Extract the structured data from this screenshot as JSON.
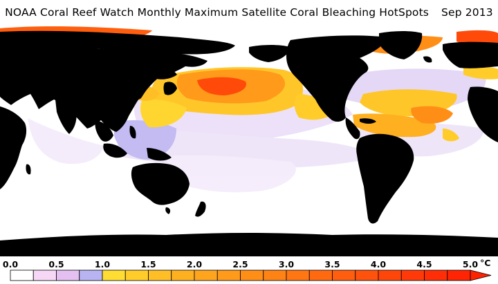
{
  "title": {
    "text": "NOAA Coral Reef Watch Monthly Maximum Satellite Coral Bleaching HotSpots",
    "date": "Sep 2013"
  },
  "legend": {
    "ticks": [
      "0.0",
      "0.5",
      "1.0",
      "1.5",
      "2.0",
      "2.5",
      "3.0",
      "3.5",
      "4.0",
      "4.5",
      "5.0"
    ],
    "unit": "°C",
    "bins": [
      {
        "from": 0.0,
        "to": 0.25,
        "color": "#ffffff"
      },
      {
        "from": 0.25,
        "to": 0.5,
        "color": "#f6d8f6"
      },
      {
        "from": 0.5,
        "to": 0.75,
        "color": "#e4c0f2"
      },
      {
        "from": 0.75,
        "to": 1.0,
        "color": "#b8b4f2"
      },
      {
        "from": 1.0,
        "to": 1.25,
        "color": "#ffdd33"
      },
      {
        "from": 1.25,
        "to": 1.5,
        "color": "#ffcc2a"
      },
      {
        "from": 1.5,
        "to": 1.75,
        "color": "#ffbe25"
      },
      {
        "from": 1.75,
        "to": 2.0,
        "color": "#ffb020"
      },
      {
        "from": 2.0,
        "to": 2.25,
        "color": "#ffa51d"
      },
      {
        "from": 2.25,
        "to": 2.5,
        "color": "#ff9a1a"
      },
      {
        "from": 2.5,
        "to": 2.75,
        "color": "#ff8e17"
      },
      {
        "from": 2.75,
        "to": 3.0,
        "color": "#ff8214"
      },
      {
        "from": 3.0,
        "to": 3.25,
        "color": "#ff7612"
      },
      {
        "from": 3.25,
        "to": 3.5,
        "color": "#ff6a10"
      },
      {
        "from": 3.5,
        "to": 3.75,
        "color": "#ff5e0e"
      },
      {
        "from": 3.75,
        "to": 4.0,
        "color": "#ff520c"
      },
      {
        "from": 4.0,
        "to": 4.25,
        "color": "#ff460a"
      },
      {
        "from": 4.25,
        "to": 4.5,
        "color": "#ff3a08"
      },
      {
        "from": 4.5,
        "to": 4.75,
        "color": "#ff2e06"
      },
      {
        "from": 4.75,
        "to": 5.0,
        "color": "#ff2404"
      },
      {
        "from": 5.0,
        "to": null,
        "color": "#ff2200"
      }
    ]
  },
  "colors": {
    "land": "#000000",
    "ocean_background": "#ffffff",
    "light_purple": "#e4c8f4",
    "lavender": "#b8b4f2",
    "yellow": "#ffcc2a",
    "orange": "#ff9a1a",
    "red": "#ff4a0a"
  }
}
